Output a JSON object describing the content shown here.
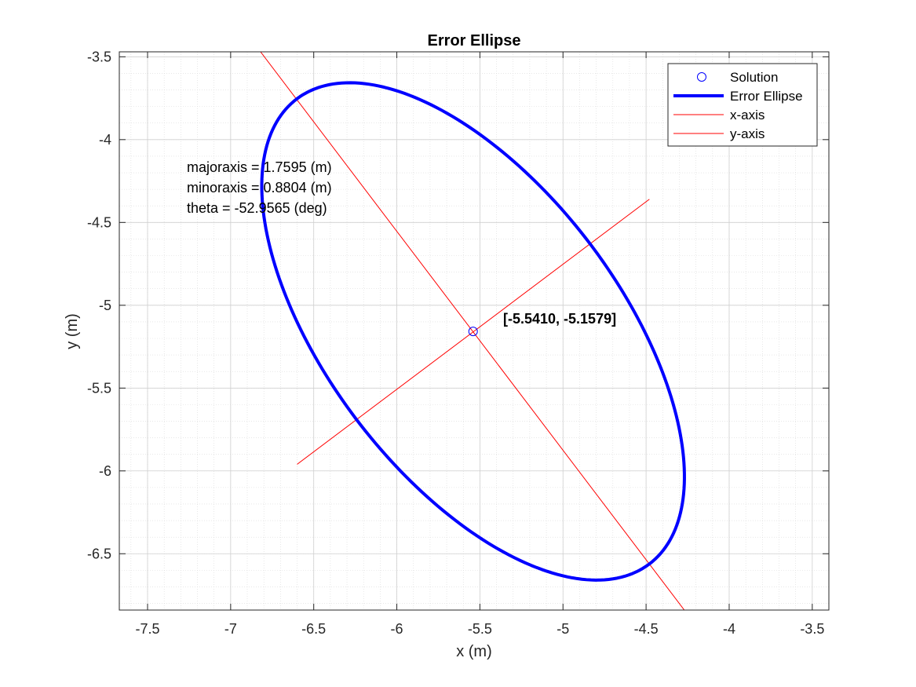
{
  "chart_data": {
    "type": "line",
    "title": "Error Ellipse",
    "xlabel": "x (m)",
    "ylabel": "y (m)",
    "xlim": [
      -7.67,
      -3.4
    ],
    "ylim": [
      -6.84,
      -3.47
    ],
    "xticks": [
      -7.5,
      -7,
      -6.5,
      -6,
      -5.5,
      -5,
      -4.5,
      -4,
      -3.5
    ],
    "xtick_labels": [
      "-7.5",
      "-7",
      "-6.5",
      "-6",
      "-5.5",
      "-5",
      "-4.5",
      "-4",
      "-3.5"
    ],
    "yticks": [
      -3.5,
      -4,
      -4.5,
      -5,
      -5.5,
      -6,
      -6.5
    ],
    "ytick_labels": [
      "-3.5",
      "-4",
      "-4.5",
      "-5",
      "-5.5",
      "-6",
      "-6.5"
    ],
    "grid": true,
    "minor_grid": true,
    "legend_position": "top-right",
    "solution": {
      "x": -5.541,
      "y": -5.1579,
      "label": "[-5.5410, -5.1579]"
    },
    "ellipse": {
      "center": [
        -5.541,
        -5.1579
      ],
      "semi_major": 1.7595,
      "semi_minor": 0.8804,
      "theta_deg": -52.9565
    },
    "axis_lines": [
      {
        "name": "x-axis",
        "x": [
          -6.82,
          -4.27
        ],
        "y": [
          -3.47,
          -6.84
        ]
      },
      {
        "name": "y-axis",
        "x": [
          -6.6,
          -4.48
        ],
        "y": [
          -5.96,
          -4.36
        ]
      }
    ],
    "annotations": [
      "majoraxis = 1.7595 (m)",
      "minoraxis = 0.8804 (m)",
      "theta = -52.9565 (deg)"
    ],
    "series": [
      {
        "name": "Solution",
        "color": "#0000ff",
        "style": "circle-marker"
      },
      {
        "name": "Error Ellipse",
        "color": "#0000ff",
        "style": "thick-line"
      },
      {
        "name": "x-axis",
        "color": "#ff0000",
        "style": "thin-line"
      },
      {
        "name": "y-axis",
        "color": "#ff0000",
        "style": "thin-line"
      }
    ]
  }
}
